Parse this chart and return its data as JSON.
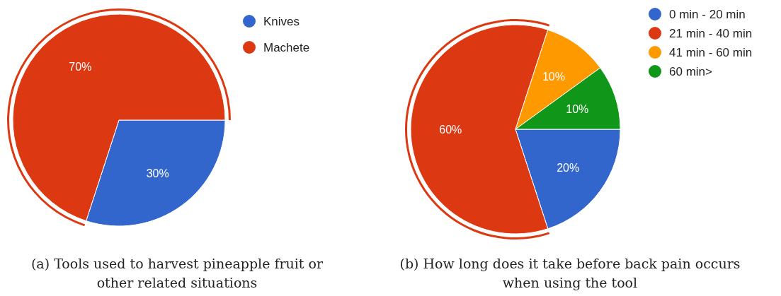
{
  "chart_data": [
    {
      "type": "pie",
      "title": "(a) Tools used to harvest pineapple fruit or other related situations",
      "categories": [
        "Knives",
        "Machete"
      ],
      "values": [
        30,
        70
      ],
      "colors": [
        "#3366cc",
        "#dc3912"
      ],
      "legend": "top right",
      "value_labels": [
        "30%",
        "70%"
      ]
    },
    {
      "type": "pie",
      "title": "(b) How long does it take before back pain occurs when using the tool",
      "categories": [
        "0 min - 20 min",
        "21 min - 40 min",
        "41 min - 60 min",
        "60 min>"
      ],
      "values": [
        20,
        60,
        10,
        10
      ],
      "colors": [
        "#3366cc",
        "#dc3912",
        "#ff9900",
        "#109618"
      ],
      "legend": "top right",
      "value_labels": [
        "20%",
        "60%",
        "10%",
        "10%"
      ]
    }
  ]
}
